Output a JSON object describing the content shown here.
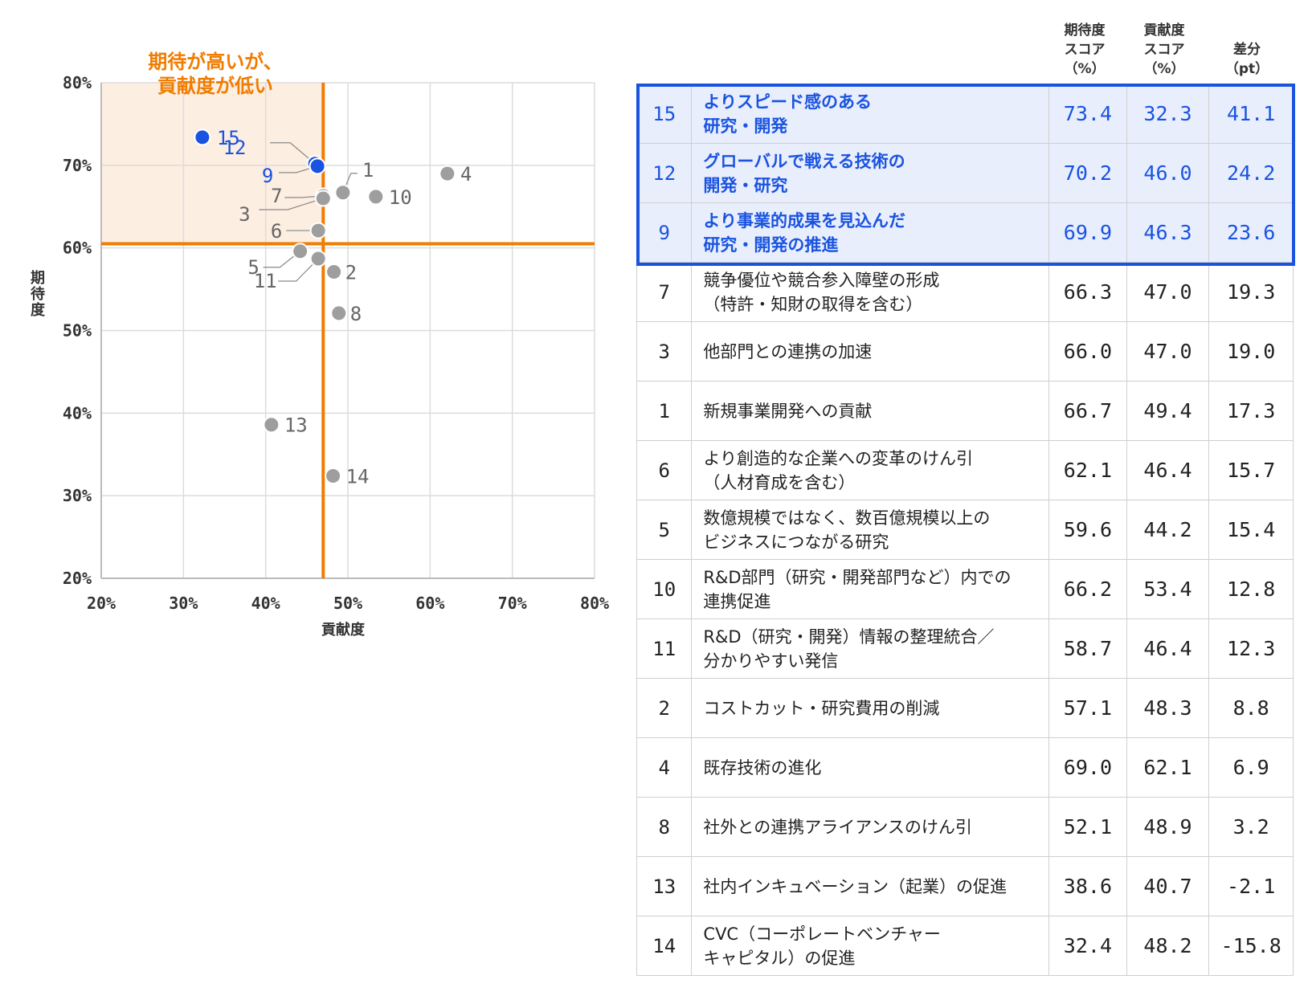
{
  "chart_data": {
    "type": "scatter",
    "title": "",
    "xlabel": "貢献度",
    "ylabel": "期待度",
    "xlim": [
      20,
      80
    ],
    "ylim": [
      20,
      80
    ],
    "xticks": [
      "20%",
      "30%",
      "40%",
      "50%",
      "60%",
      "70%",
      "80%"
    ],
    "yticks": [
      "20%",
      "30%",
      "40%",
      "50%",
      "60%",
      "70%",
      "80%"
    ],
    "grid": true,
    "reference_lines": {
      "x": 47.0,
      "y": 60.5
    },
    "quadrant_label": "期待が高いが、\n貢献度が低い",
    "colors": {
      "highlight": "#1a53e0",
      "normal": "#9e9e9e",
      "reference": "#f07c00",
      "quadrant_fill": "#fdeee2"
    },
    "points": [
      {
        "id": "15",
        "x": 32.3,
        "y": 73.4,
        "highlight": true
      },
      {
        "id": "12",
        "x": 46.0,
        "y": 70.2,
        "highlight": true
      },
      {
        "id": "9",
        "x": 46.3,
        "y": 69.9,
        "highlight": true
      },
      {
        "id": "7",
        "x": 47.0,
        "y": 66.3,
        "highlight": false
      },
      {
        "id": "3",
        "x": 47.0,
        "y": 66.0,
        "highlight": false
      },
      {
        "id": "1",
        "x": 49.4,
        "y": 66.7,
        "highlight": false
      },
      {
        "id": "6",
        "x": 46.4,
        "y": 62.1,
        "highlight": false
      },
      {
        "id": "5",
        "x": 44.2,
        "y": 59.6,
        "highlight": false
      },
      {
        "id": "10",
        "x": 53.4,
        "y": 66.2,
        "highlight": false
      },
      {
        "id": "11",
        "x": 46.4,
        "y": 58.7,
        "highlight": false
      },
      {
        "id": "2",
        "x": 48.3,
        "y": 57.1,
        "highlight": false
      },
      {
        "id": "4",
        "x": 62.1,
        "y": 69.0,
        "highlight": false
      },
      {
        "id": "8",
        "x": 48.9,
        "y": 52.1,
        "highlight": false
      },
      {
        "id": "13",
        "x": 40.7,
        "y": 38.6,
        "highlight": false
      },
      {
        "id": "14",
        "x": 48.2,
        "y": 32.4,
        "highlight": false
      }
    ]
  },
  "table": {
    "headers": {
      "expect": "期待度\nスコア\n（%）",
      "contrib": "貢献度\nスコア\n（%）",
      "diff": "差分\n（pt）"
    },
    "rows": [
      {
        "rank": "15",
        "item": "よりスピード感のある\n研究・開発",
        "expect": "73.4",
        "contrib": "32.3",
        "diff": "41.1",
        "highlight": true
      },
      {
        "rank": "12",
        "item": "グローバルで戦える技術の\n開発・研究",
        "expect": "70.2",
        "contrib": "46.0",
        "diff": "24.2",
        "highlight": true
      },
      {
        "rank": "9",
        "item": "より事業的成果を見込んだ\n研究・開発の推進",
        "expect": "69.9",
        "contrib": "46.3",
        "diff": "23.6",
        "highlight": true
      },
      {
        "rank": "7",
        "item": "競争優位や競合参入障壁の形成\n（特許・知財の取得を含む）",
        "expect": "66.3",
        "contrib": "47.0",
        "diff": "19.3",
        "highlight": false
      },
      {
        "rank": "3",
        "item": "他部門との連携の加速",
        "expect": "66.0",
        "contrib": "47.0",
        "diff": "19.0",
        "highlight": false
      },
      {
        "rank": "1",
        "item": "新規事業開発への貢献",
        "expect": "66.7",
        "contrib": "49.4",
        "diff": "17.3",
        "highlight": false
      },
      {
        "rank": "6",
        "item": "より創造的な企業への変革のけん引\n（人材育成を含む）",
        "expect": "62.1",
        "contrib": "46.4",
        "diff": "15.7",
        "highlight": false
      },
      {
        "rank": "5",
        "item": "数億規模ではなく、数百億規模以上の\nビジネスにつながる研究",
        "expect": "59.6",
        "contrib": "44.2",
        "diff": "15.4",
        "highlight": false
      },
      {
        "rank": "10",
        "item": "R&D部門（研究・開発部門など）内での\n連携促進",
        "expect": "66.2",
        "contrib": "53.4",
        "diff": "12.8",
        "highlight": false
      },
      {
        "rank": "11",
        "item": "R&D（研究・開発）情報の整理統合／\n分かりやすい発信",
        "expect": "58.7",
        "contrib": "46.4",
        "diff": "12.3",
        "highlight": false
      },
      {
        "rank": "2",
        "item": "コストカット・研究費用の削減",
        "expect": "57.1",
        "contrib": "48.3",
        "diff": "8.8",
        "highlight": false
      },
      {
        "rank": "4",
        "item": "既存技術の進化",
        "expect": "69.0",
        "contrib": "62.1",
        "diff": "6.9",
        "highlight": false
      },
      {
        "rank": "8",
        "item": "社外との連携アライアンスのけん引",
        "expect": "52.1",
        "contrib": "48.9",
        "diff": "3.2",
        "highlight": false
      },
      {
        "rank": "13",
        "item": "社内インキュベーション（起業）の促進",
        "expect": "38.6",
        "contrib": "40.7",
        "diff": "-2.1",
        "highlight": false
      },
      {
        "rank": "14",
        "item": "CVC（コーポレートベンチャー\nキャピタル）の促進",
        "expect": "32.4",
        "contrib": "48.2",
        "diff": "-15.8",
        "highlight": false
      }
    ]
  }
}
